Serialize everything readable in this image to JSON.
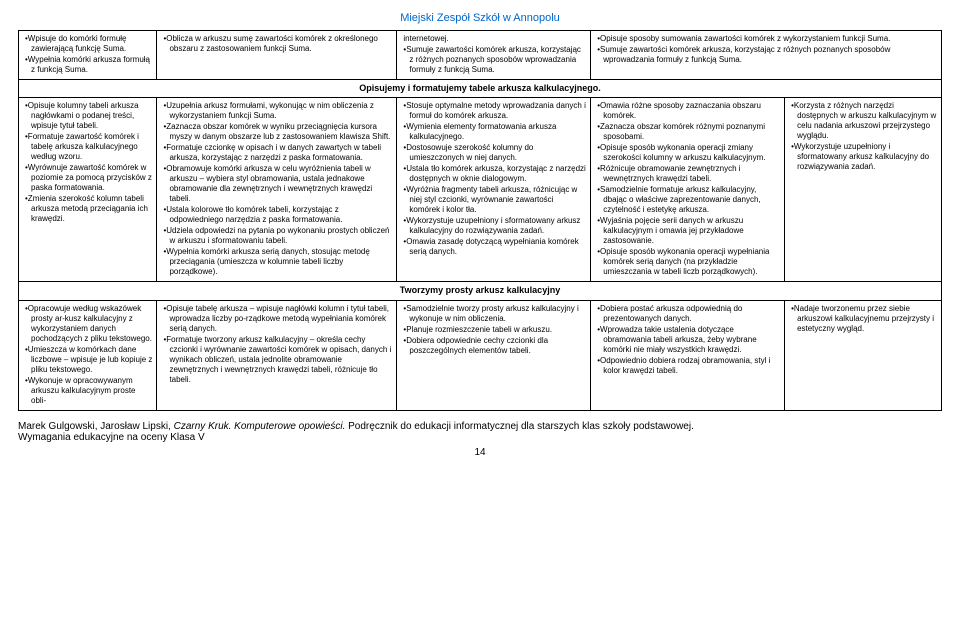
{
  "header": "Miejski Zespół Szkół w Annopolu",
  "row1": {
    "c1": [
      "•Wpisuje do komórki formułę zawierającą funkcję Suma.",
      "•Wypełnia komórki arkusza formułą z funkcją Suma."
    ],
    "c2": [
      "•Oblicza w arkuszu sumę zawartości komórek z określonego obszaru z zastosowaniem funkcji Suma."
    ],
    "c3": [
      "internetowej.",
      "•Sumuje zawartości komórek arkusza, korzystając z różnych poznanych sposobów wprowadzania formuły z funkcją Suma."
    ],
    "c4": [
      "•Opisuje sposoby sumowania zawartości komórek z wykorzystaniem funkcji Suma.",
      "•Sumuje zawartości komórek arkusza, korzystając z różnych poznanych sposobów wprowadzania formuły z funkcją Suma."
    ]
  },
  "section1": "Opisujemy i formatujemy tabele arkusza kalkulacyjnego.",
  "row2": {
    "c1": [
      "•Opisuje kolumny tabeli arkusza nagłówkami o podanej treści, wpisuje tytuł tabeli.",
      "•Formatuje zawartość komórek i tabelę arkusza kalkulacyjnego według wzoru.",
      "•Wyrównuje zawartość komórek w poziomie za pomocą przycisków z paska formatowania.",
      "•Zmienia szerokość kolumn tabeli arkusza metodą przeciągania ich krawędzi."
    ],
    "c2": [
      "•Uzupełnia arkusz formułami, wykonując w nim obliczenia z wykorzystaniem funkcji Suma.",
      "•Zaznacza obszar komórek w wyniku przeciągnięcia kursora myszy w danym obszarze lub z zastosowaniem klawisza Shift.",
      "•Formatuje czcionkę w opisach i w danych zawartych w tabeli arkusza, korzystając z narzędzi z paska formatowania.",
      "•Obramowuje komórki arkusza w celu wyróżnienia tabeli w arkuszu – wybiera styl obramowania, ustala jednakowe obramowanie dla zewnętrznych i wewnętrznych krawędzi tabeli.",
      "•Ustala kolorowe tło komórek tabeli, korzystając z odpowiedniego narzędzia z paska formatowania.",
      "•Udziela odpowiedzi na pytania po wykonaniu prostych obliczeń w arkuszu i sformatowaniu tabeli.",
      "•Wypełnia komórki arkusza serią danych, stosując metodę przeciągania (umieszcza w kolumnie tabeli liczby porządkowe)."
    ],
    "c3": [
      "•Stosuje optymalne metody wprowadzania danych i formuł do komórek arkusza.",
      "•Wymienia elementy formatowania arkusza kalkulacyjnego.",
      "•Dostosowuje szerokość kolumny do umieszczonych w niej danych.",
      "•Ustala tło komórek arkusza, korzystając z narzędzi dostępnych w oknie dialogowym.",
      "•Wyróżnia fragmenty tabeli arkusza, różnicując w niej styl czcionki, wyrównanie zawartości komórek i kolor tła.",
      "•Wykorzystuje uzupełniony i sformatowany arkusz kalkulacyjny do rozwiązywania zadań.",
      "•Omawia zasadę dotyczącą wypełniania komórek serią danych."
    ],
    "c4": [
      "•Omawia różne sposoby zaznaczania obszaru komórek.",
      "•Zaznacza obszar komórek różnymi poznanymi sposobami.",
      "•Opisuje sposób wykonania operacji zmiany szerokości kolumny w arkuszu kalkulacyjnym.",
      "•Różnicuje obramowanie zewnętrznych i wewnętrznych krawędzi tabeli.",
      "•Samodzielnie formatuje arkusz kalkulacyjny, dbając o właściwe zaprezentowanie danych, czytelność i estetykę arkusza.",
      "•Wyjaśnia pojęcie serii danych w arkuszu kalkulacyjnym i omawia jej przykładowe zastosowanie.",
      "•Opisuje sposób wykonania operacji wypełniania komórek serią danych (na przykładzie umieszczania w tabeli liczb porządkowych)."
    ],
    "c5": [
      "•Korzysta z różnych narzędzi dostępnych w arkuszu kalkulacyjnym w celu nadania arkuszowi przejrzystego wyglądu.",
      "•Wykorzystuje uzupełniony i sformatowany arkusz kalkulacyjny do rozwiązywania zadań."
    ]
  },
  "section2": "Tworzymy prosty arkusz kalkulacyjny",
  "row3": {
    "c1": [
      "•Opracowuje według wskazówek prosty ar-kusz kalkulacyjny z wykorzystaniem danych pochodzących z pliku tekstowego.",
      "•Umieszcza w komórkach dane liczbowe – wpisuje je lub kopiuje z pliku tekstowego.",
      "•Wykonuje w opracowywanym arkuszu kalkulacyjnym proste obli-"
    ],
    "c2": [
      "•Opisuje tabelę arkusza – wpisuje nagłówki kolumn i tytuł tabeli, wprowadza liczby po-rządkowe metodą wypełniania komórek serią danych.",
      "•Formatuje tworzony arkusz kalkulacyjny – określa cechy czcionki i wyrównanie zawartości komórek w opisach, danych i wynikach obliczeń, ustala jednolite obramowanie zewnętrznych i wewnętrznych krawędzi tabeli, różnicuje tło tabeli."
    ],
    "c3": [
      "•Samodzielnie tworzy prosty arkusz kalkulacyjny i wykonuje w nim obliczenia.",
      "•Planuje rozmieszczenie tabeli w arkuszu.",
      "•Dobiera odpowiednie cechy czcionki dla poszczególnych elementów tabeli."
    ],
    "c4": [
      "•Dobiera postać arkusza odpowiednią do prezentowanych danych.",
      "•Wprowadza takie ustalenia dotyczące obramowania tabeli arkusza, żeby wybrane komórki nie miały wszystkich krawędzi.",
      "•Odpowiednio dobiera rodzaj obramowania, styl i kolor krawędzi tabeli."
    ],
    "c5": [
      "•Nadaje tworzonemu przez siebie arkuszowi kalkulacyjnemu przejrzysty i estetyczny wygląd."
    ]
  },
  "footer": {
    "authors": "Marek Gulgowski, Jarosław Lipski, ",
    "title": "Czarny Kruk. Komputerowe opowieści.",
    "rest": " Podręcznik do edukacji informatycznej dla starszych klas szkoły podstawowej.",
    "sub": "Wymagania edukacyjne na oceny Klasa V",
    "page": "14"
  }
}
